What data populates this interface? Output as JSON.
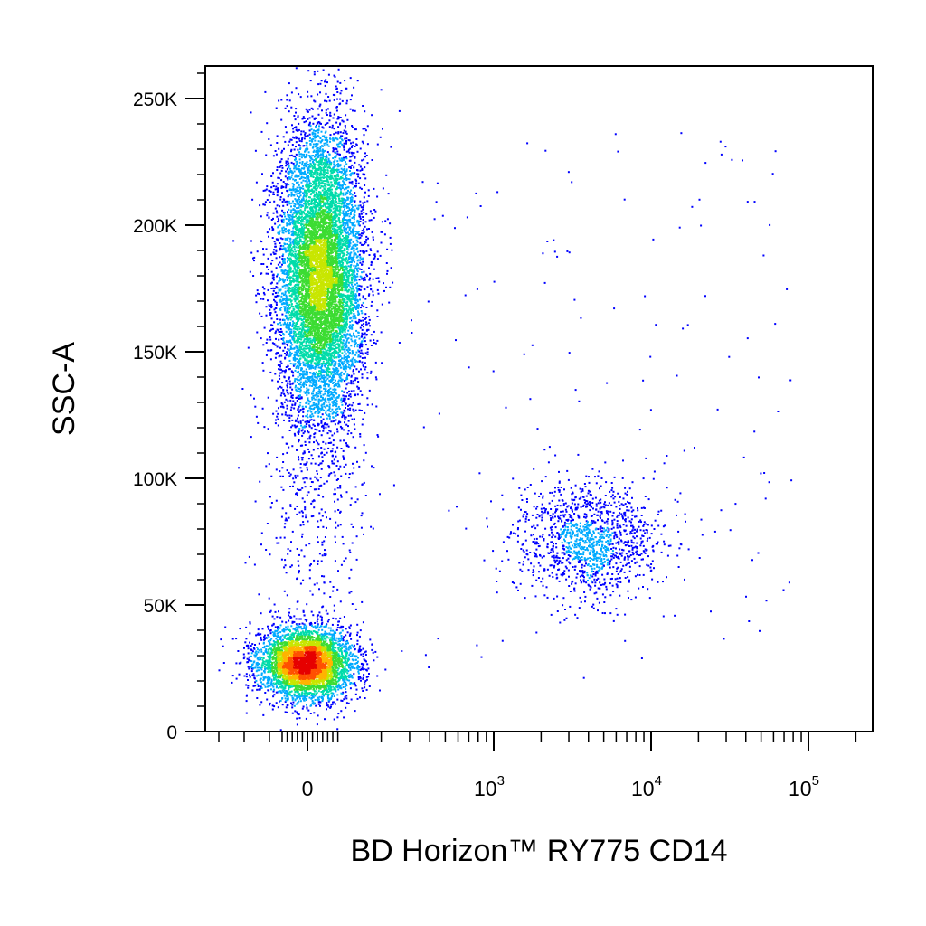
{
  "chart_data": {
    "type": "scatter",
    "subtype": "flow-cytometry-density-dot-plot",
    "xlabel": "BD Horizon™ RY775 CD14",
    "ylabel": "SSC-A",
    "x_scale": "biexponential",
    "y_scale": "linear",
    "ylim": [
      0,
      262144
    ],
    "y_ticks": [
      {
        "value": 0,
        "label": "0"
      },
      {
        "value": 50000,
        "label": "50K"
      },
      {
        "value": 100000,
        "label": "100K"
      },
      {
        "value": 150000,
        "label": "150K"
      },
      {
        "value": 200000,
        "label": "200K"
      },
      {
        "value": 250000,
        "label": "250K"
      }
    ],
    "x_ticks": [
      {
        "value": 0,
        "base": "0",
        "exp": ""
      },
      {
        "value": 1000,
        "base": "10",
        "exp": "3"
      },
      {
        "value": 10000,
        "base": "10",
        "exp": "4"
      },
      {
        "value": 100000,
        "base": "10",
        "exp": "5"
      }
    ],
    "grid": false,
    "legend": "none",
    "colormap": [
      "#0000ff",
      "#00aaff",
      "#00dcaa",
      "#3cdc32",
      "#c8e600",
      "#ffb400",
      "#ff5000",
      "#e60000"
    ],
    "populations": [
      {
        "x_center": 0,
        "y_center": 180000,
        "x_spread": 60,
        "y_spread": 30000,
        "count": 9000
      },
      {
        "x_center": 0,
        "y_center": 27000,
        "x_spread": 60,
        "y_spread": 7000,
        "count": 4500
      },
      {
        "x_center": 4000,
        "y_center": 76000,
        "x_spread_log10": 0.22,
        "y_spread": 11000,
        "count": 1300
      }
    ]
  }
}
